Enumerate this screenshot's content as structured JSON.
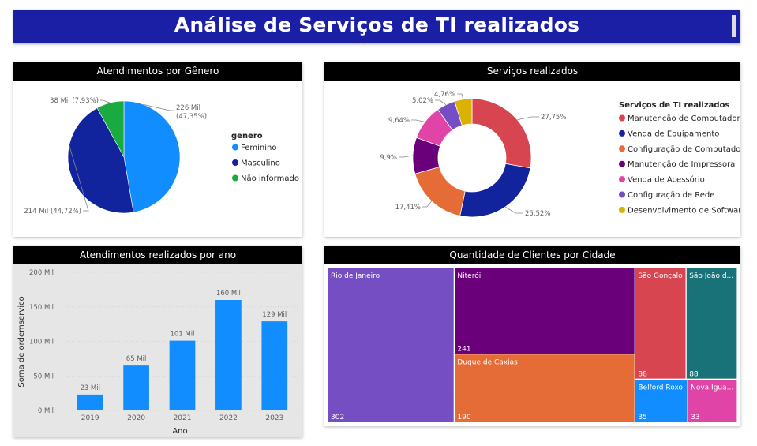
{
  "title": "Análise de Serviços de TI realizados",
  "colors": {
    "banner": "#1b1fa6",
    "header": "#000000"
  },
  "chart_data": [
    {
      "type": "pie",
      "title": "Atendimentos por Gênero",
      "legend_title": "genero",
      "legend_position": "right",
      "slices": [
        {
          "name": "Feminino",
          "value": 226,
          "label": "226 Mil",
          "pct_label": "(47,35%)",
          "color": "#118dff"
        },
        {
          "name": "Masculino",
          "value": 214,
          "label": "214 Mil (44,72%)",
          "color": "#12239e"
        },
        {
          "name": "Não informado",
          "value": 38,
          "label": "38 Mil (7,93%)",
          "color": "#1aab40"
        }
      ]
    },
    {
      "type": "pie",
      "subtype": "donut",
      "title": "Serviços realizados",
      "legend_title": "Serviços de TI realizados",
      "legend_position": "right",
      "slices": [
        {
          "name": "Manutenção de Computador",
          "value": 27.75,
          "label": "27,75%",
          "color": "#d64550"
        },
        {
          "name": "Venda de Equipamento",
          "value": 25.52,
          "label": "25,52%",
          "color": "#12239e"
        },
        {
          "name": "Configuração de Computador",
          "value": 17.41,
          "label": "17,41%",
          "color": "#e66c37"
        },
        {
          "name": "Manutenção de Impressora",
          "value": 9.9,
          "label": "9,9%",
          "color": "#6b007b"
        },
        {
          "name": "Venda de Acessório",
          "value": 9.64,
          "label": "9,64%",
          "color": "#e044a7"
        },
        {
          "name": "Configuração de Rede",
          "value": 5.02,
          "label": "5,02%",
          "color": "#744ec2"
        },
        {
          "name": "Desenvolvimento de Software",
          "value": 4.76,
          "label": "4,76%",
          "color": "#d9b300"
        }
      ]
    },
    {
      "type": "bar",
      "title": "Atendimentos realizados por ano",
      "xlabel": "Ano",
      "ylabel": "Soma de ordemservico",
      "ylim": [
        0,
        200
      ],
      "y_ticks": [
        {
          "value": 0,
          "label": "0 Mil"
        },
        {
          "value": 50,
          "label": "50 Mil"
        },
        {
          "value": 100,
          "label": "100 Mil"
        },
        {
          "value": 150,
          "label": "150 Mil"
        },
        {
          "value": 200,
          "label": "200 Mil"
        }
      ],
      "categories": [
        "2019",
        "2020",
        "2021",
        "2022",
        "2023"
      ],
      "values": [
        23,
        65,
        101,
        160,
        129
      ],
      "labels": [
        "23 Mil",
        "65 Mil",
        "101 Mil",
        "160 Mil",
        "129 Mil"
      ],
      "color": "#118dff",
      "grid": true
    },
    {
      "type": "treemap",
      "title": "Quantidade de Clientes por Cidade",
      "items": [
        {
          "name": "Rio de Janeiro",
          "value": 302,
          "color": "#744ec2"
        },
        {
          "name": "Niterói",
          "value": 241,
          "color": "#6b007b"
        },
        {
          "name": "Duque de Caxias",
          "value": 190,
          "color": "#e66c37"
        },
        {
          "name": "São Gonçalo",
          "value": 88,
          "color": "#d64550"
        },
        {
          "name": "São João d...",
          "value": 88,
          "color": "#197278"
        },
        {
          "name": "Belford Roxo",
          "value": 35,
          "color": "#118dff"
        },
        {
          "name": "Nova Igua...",
          "value": 33,
          "color": "#e044a7"
        }
      ]
    }
  ]
}
